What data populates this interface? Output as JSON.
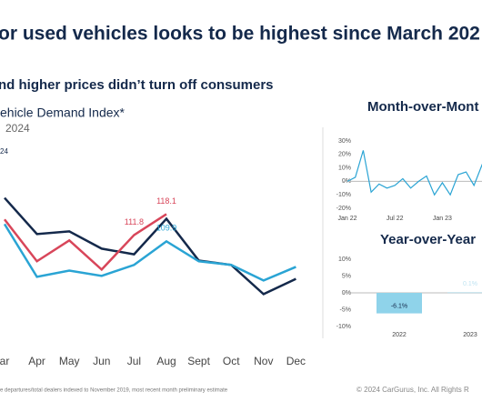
{
  "chart_data": [
    {
      "type": "line",
      "title": "or used vehicles looks to be highest since March 202",
      "subtitle": "nd higher prices didn’t turn off consumers",
      "chart_title": "ehicle Demand Index*",
      "chart_subtitle": "2024",
      "footnote": "e departures/total dealers indexed to November 2019, most recent month preliminary estimate",
      "source": "© 2024 CarGurus, Inc.  All Rights R",
      "categories": [
        "ar",
        "Apr",
        "May",
        "Jun",
        "Jul",
        "Aug",
        "Sept",
        "Oct",
        "Nov",
        "Dec"
      ],
      "ylim": [
        73,
        147
      ],
      "series": [
        {
          "color": "#14294b",
          "values": [
            123.0,
            112.1,
            112.9,
            107.7,
            106.0,
            116.7,
            104.1,
            102.8,
            94.0,
            98.6
          ]
        },
        {
          "color": "#2aa4d4",
          "values": [
            115.1,
            99.2,
            101.1,
            99.5,
            102.8,
            109.9,
            103.9,
            102.8,
            98.1,
            102.2
          ],
          "value_labels": [
            null,
            null,
            null,
            null,
            null,
            "109.9",
            null,
            null,
            null,
            null
          ]
        },
        {
          "name": "24",
          "color": "#d8465a",
          "values": [
            116.5,
            103.9,
            110.2,
            101.4,
            111.8,
            118.1,
            null,
            null,
            null,
            null
          ],
          "value_labels": [
            null,
            null,
            null,
            null,
            "111.8",
            "118.1",
            null,
            null,
            null,
            null
          ]
        }
      ]
    },
    {
      "type": "line",
      "title": "Month-over-Mont",
      "categories": [
        "Jan 22",
        null,
        null,
        null,
        null,
        null,
        "Jul 22",
        null,
        null,
        null,
        null,
        null,
        "Jan 23",
        null,
        null,
        null,
        null,
        null,
        "Ju"
      ],
      "ylim": [
        -20,
        30
      ],
      "yticks": [
        {
          "value": 30,
          "label": "30%"
        },
        {
          "value": 20,
          "label": "20%"
        },
        {
          "value": 10,
          "label": "10%"
        },
        {
          "value": 0,
          "label": "0%"
        },
        {
          "value": -10,
          "label": "-10%"
        },
        {
          "value": -20,
          "label": "-20%"
        }
      ],
      "series": [
        {
          "color": "#2aa4d4",
          "values": [
            0,
            3,
            23,
            -8,
            -2,
            -5,
            -3,
            2,
            -5,
            0,
            4,
            -10,
            -1,
            -10,
            5,
            7,
            -3,
            12,
            -2
          ]
        }
      ]
    },
    {
      "type": "bar",
      "title": "Year-over-Year",
      "categories": [
        "2022",
        "2023"
      ],
      "values": [
        -6.1,
        0.1
      ],
      "value_labels": [
        "-6.1%",
        "0.1%"
      ],
      "color": "#8fd3ea",
      "ylim": [
        -10,
        10
      ],
      "yticks": [
        {
          "value": 10,
          "label": "10%"
        },
        {
          "value": 5,
          "label": "5%"
        },
        {
          "value": 0,
          "label": "0%"
        },
        {
          "value": -5,
          "label": "-5%"
        },
        {
          "value": -10,
          "label": "-10%"
        }
      ]
    }
  ]
}
